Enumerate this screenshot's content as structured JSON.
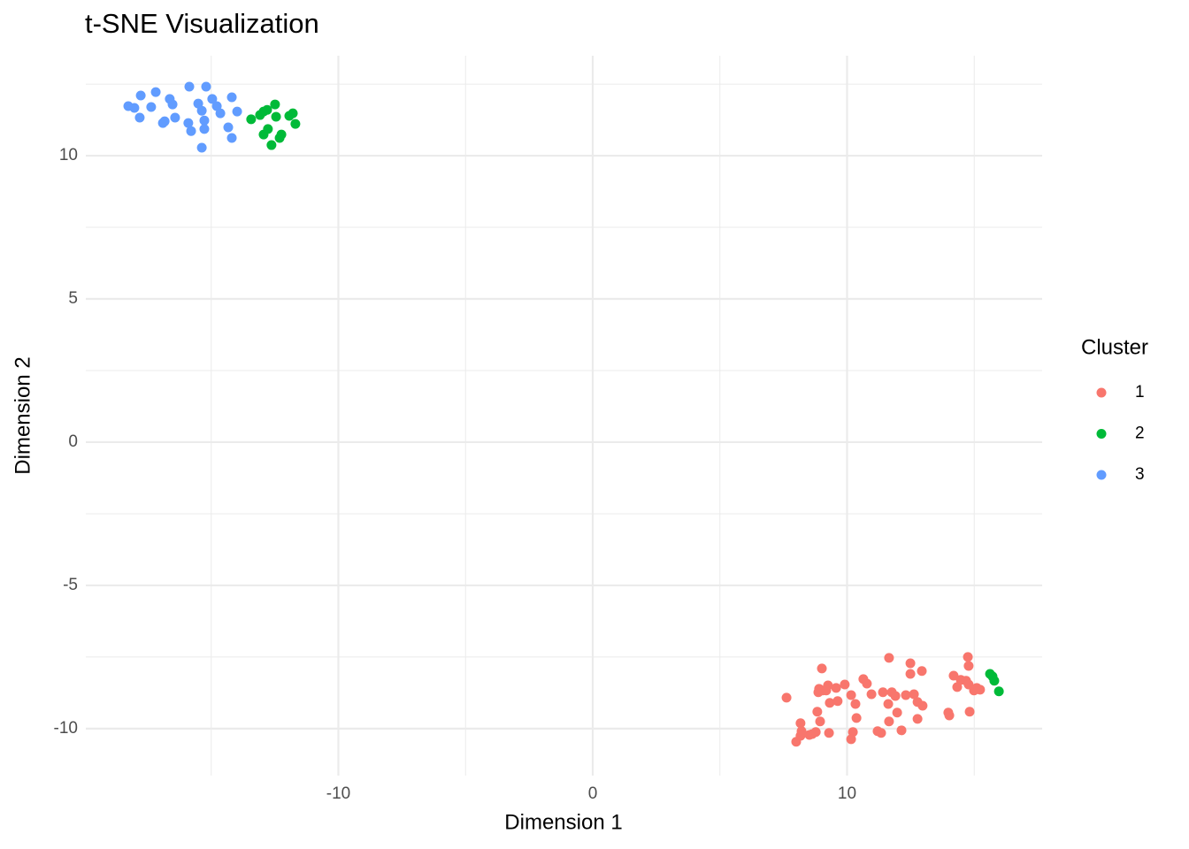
{
  "chart_data": {
    "type": "scatter",
    "title": "t-SNE Visualization",
    "x_label": "Dimension 1",
    "y_label": "Dimension 2",
    "legend_title": "Cluster",
    "xlim": [
      -19.93,
      17.67
    ],
    "ylim": [
      -11.64,
      13.49
    ],
    "xticks": [
      -10,
      0,
      10
    ],
    "yticks": [
      -10,
      -5,
      0,
      5,
      10
    ],
    "x_minor_grid": [
      -15,
      -5,
      5,
      15
    ],
    "y_minor_grid": [
      -7.5,
      -2.5,
      2.5,
      7.5,
      12.5
    ],
    "grid": true,
    "legend_position": "right",
    "series": [
      {
        "name": "1",
        "color": "#F8766D",
        "x": [
          7.62,
          8.0,
          8.17,
          8.21,
          8.17,
          8.52,
          8.63,
          8.77,
          8.83,
          8.87,
          8.9,
          9.01,
          9.04,
          8.94,
          9.25,
          9.29,
          9.18,
          9.32,
          9.57,
          9.63,
          9.91,
          10.16,
          10.23,
          10.16,
          10.33,
          10.37,
          10.64,
          10.78,
          10.96,
          11.41,
          11.62,
          11.65,
          11.76,
          11.9,
          11.97,
          12.14,
          12.31,
          12.49,
          12.49,
          12.63,
          12.77,
          12.94,
          12.97,
          12.77,
          13.98,
          14.02,
          14.19,
          14.33,
          14.47,
          14.68,
          14.75,
          14.78,
          14.78,
          14.82,
          14.99,
          15.1,
          15.23,
          11.2,
          11.34,
          11.65
        ],
        "y": [
          -8.92,
          -10.46,
          -9.81,
          -10.09,
          -10.25,
          -10.22,
          -10.19,
          -10.12,
          -9.41,
          -8.73,
          -8.61,
          -7.9,
          -8.67,
          -9.75,
          -8.49,
          -10.15,
          -8.67,
          -9.1,
          -8.58,
          -9.04,
          -8.46,
          -8.83,
          -10.12,
          -10.37,
          -9.14,
          -9.63,
          -8.27,
          -8.43,
          -8.8,
          -8.73,
          -9.14,
          -7.53,
          -8.73,
          -8.86,
          -9.44,
          -10.06,
          -8.83,
          -7.72,
          -8.09,
          -8.8,
          -9.07,
          -7.99,
          -9.2,
          -9.66,
          -9.44,
          -9.54,
          -8.15,
          -8.55,
          -8.3,
          -8.33,
          -7.5,
          -7.81,
          -8.46,
          -9.41,
          -8.67,
          -8.58,
          -8.64,
          -10.09,
          -10.15,
          -9.75
        ]
      },
      {
        "name": "2",
        "color": "#00BA38",
        "x": [
          -13.43,
          -13.08,
          -12.94,
          -12.8,
          -12.49,
          -12.45,
          -12.94,
          -12.77,
          -12.31,
          -12.63,
          -12.24,
          -11.93,
          -11.79,
          -11.69,
          15.62,
          15.72,
          15.79,
          15.97
        ],
        "y": [
          11.27,
          11.42,
          11.54,
          11.6,
          11.79,
          11.36,
          10.74,
          10.93,
          10.62,
          10.37,
          10.74,
          11.39,
          11.48,
          11.11,
          -8.09,
          -8.18,
          -8.33,
          -8.7
        ]
      },
      {
        "name": "3",
        "color": "#619CFF",
        "x": [
          -18.26,
          -18.02,
          -17.77,
          -17.81,
          -17.18,
          -17.36,
          -16.9,
          -16.83,
          -16.63,
          -16.52,
          -16.42,
          -15.86,
          -15.9,
          -15.79,
          -15.51,
          -15.37,
          -15.37,
          -15.27,
          -15.27,
          -15.2,
          -14.96,
          -14.78,
          -14.64,
          -14.33,
          -14.19,
          -14.19,
          -13.98
        ],
        "y": [
          11.73,
          11.67,
          12.1,
          11.33,
          12.22,
          11.7,
          11.14,
          11.2,
          11.98,
          11.79,
          11.33,
          12.41,
          11.14,
          10.86,
          11.82,
          11.57,
          10.28,
          11.23,
          10.93,
          12.41,
          11.98,
          11.73,
          11.48,
          10.99,
          12.04,
          10.62,
          11.54
        ]
      }
    ]
  }
}
